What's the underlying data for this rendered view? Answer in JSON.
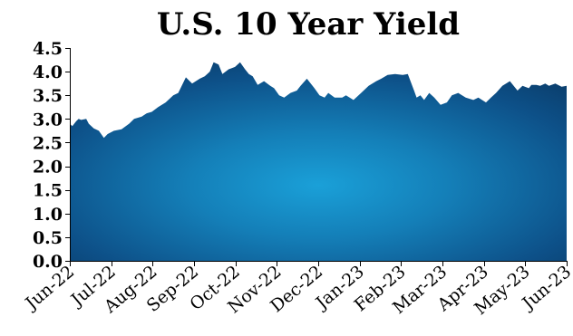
{
  "chart_data": {
    "type": "area",
    "title": "U.S. 10 Year Yield",
    "xlabel": "",
    "ylabel": "",
    "ylim": [
      0,
      4.5
    ],
    "yticks": [
      "0.0",
      "0.5",
      "1.0",
      "1.5",
      "2.0",
      "2.5",
      "3.0",
      "3.5",
      "4.0",
      "4.5"
    ],
    "xticks": [
      "Jun-22",
      "Jul-22",
      "Aug-22",
      "Sep-22",
      "Oct-22",
      "Nov-22",
      "Dec-22",
      "Jan-23",
      "Feb-23",
      "Mar-23",
      "Apr-23",
      "May-23",
      "Jun-23"
    ],
    "grid": false,
    "legend": "none",
    "colors": {
      "fill_center": "#1aa0d8",
      "fill_edge": "#0a3a66"
    },
    "series": [
      {
        "x": [
          "2022-06-01",
          "2022-06-03",
          "2022-06-06",
          "2022-06-08",
          "2022-06-10",
          "2022-06-14",
          "2022-06-16",
          "2022-06-20",
          "2022-06-24",
          "2022-06-28",
          "2022-07-01",
          "2022-07-06",
          "2022-07-12",
          "2022-07-18",
          "2022-07-22",
          "2022-07-28",
          "2022-08-01",
          "2022-08-05",
          "2022-08-10",
          "2022-08-16",
          "2022-08-22",
          "2022-08-26",
          "2022-09-01",
          "2022-09-06",
          "2022-09-12",
          "2022-09-16",
          "2022-09-20",
          "2022-09-23",
          "2022-09-27",
          "2022-09-30",
          "2022-10-05",
          "2022-10-10",
          "2022-10-14",
          "2022-10-18",
          "2022-10-21",
          "2022-10-24",
          "2022-10-28",
          "2022-11-02",
          "2022-11-07",
          "2022-11-10",
          "2022-11-14",
          "2022-11-18",
          "2022-11-23",
          "2022-11-28",
          "2022-12-01",
          "2022-12-06",
          "2022-12-12",
          "2022-12-16",
          "2022-12-20",
          "2022-12-23",
          "2022-12-28",
          "2023-01-03",
          "2023-01-06",
          "2023-01-12",
          "2023-01-18",
          "2023-01-24",
          "2023-01-30",
          "2023-02-03",
          "2023-02-08",
          "2023-02-14",
          "2023-02-20",
          "2023-02-24",
          "2023-03-01",
          "2023-03-03",
          "2023-03-06",
          "2023-03-09",
          "2023-03-13",
          "2023-03-17",
          "2023-03-22",
          "2023-03-27",
          "2023-03-31",
          "2023-04-05",
          "2023-04-11",
          "2023-04-17",
          "2023-04-21",
          "2023-04-27",
          "2023-05-01",
          "2023-05-05",
          "2023-05-10",
          "2023-05-16",
          "2023-05-22",
          "2023-05-26",
          "2023-05-31",
          "2023-06-02",
          "2023-06-06",
          "2023-06-09",
          "2023-06-13",
          "2023-06-16",
          "2023-06-21",
          "2023-06-26",
          "2023-06-30"
        ],
        "values": [
          2.9,
          2.85,
          2.95,
          3.0,
          2.98,
          3.0,
          2.9,
          2.8,
          2.75,
          2.6,
          2.68,
          2.75,
          2.78,
          2.9,
          3.0,
          3.05,
          3.12,
          3.15,
          3.25,
          3.35,
          3.5,
          3.55,
          3.88,
          3.75,
          3.85,
          3.9,
          4.0,
          4.2,
          4.15,
          3.95,
          4.05,
          4.1,
          4.2,
          4.05,
          3.95,
          3.9,
          3.72,
          3.8,
          3.7,
          3.65,
          3.5,
          3.45,
          3.55,
          3.6,
          3.7,
          3.85,
          3.65,
          3.5,
          3.45,
          3.55,
          3.45,
          3.45,
          3.5,
          3.4,
          3.55,
          3.7,
          3.8,
          3.85,
          3.93,
          3.95,
          3.93,
          3.95,
          3.6,
          3.45,
          3.5,
          3.4,
          3.55,
          3.45,
          3.3,
          3.35,
          3.5,
          3.55,
          3.45,
          3.4,
          3.45,
          3.35,
          3.45,
          3.55,
          3.7,
          3.8,
          3.6,
          3.7,
          3.65,
          3.72,
          3.72,
          3.7,
          3.75,
          3.7,
          3.75,
          3.68,
          3.7
        ]
      }
    ]
  }
}
